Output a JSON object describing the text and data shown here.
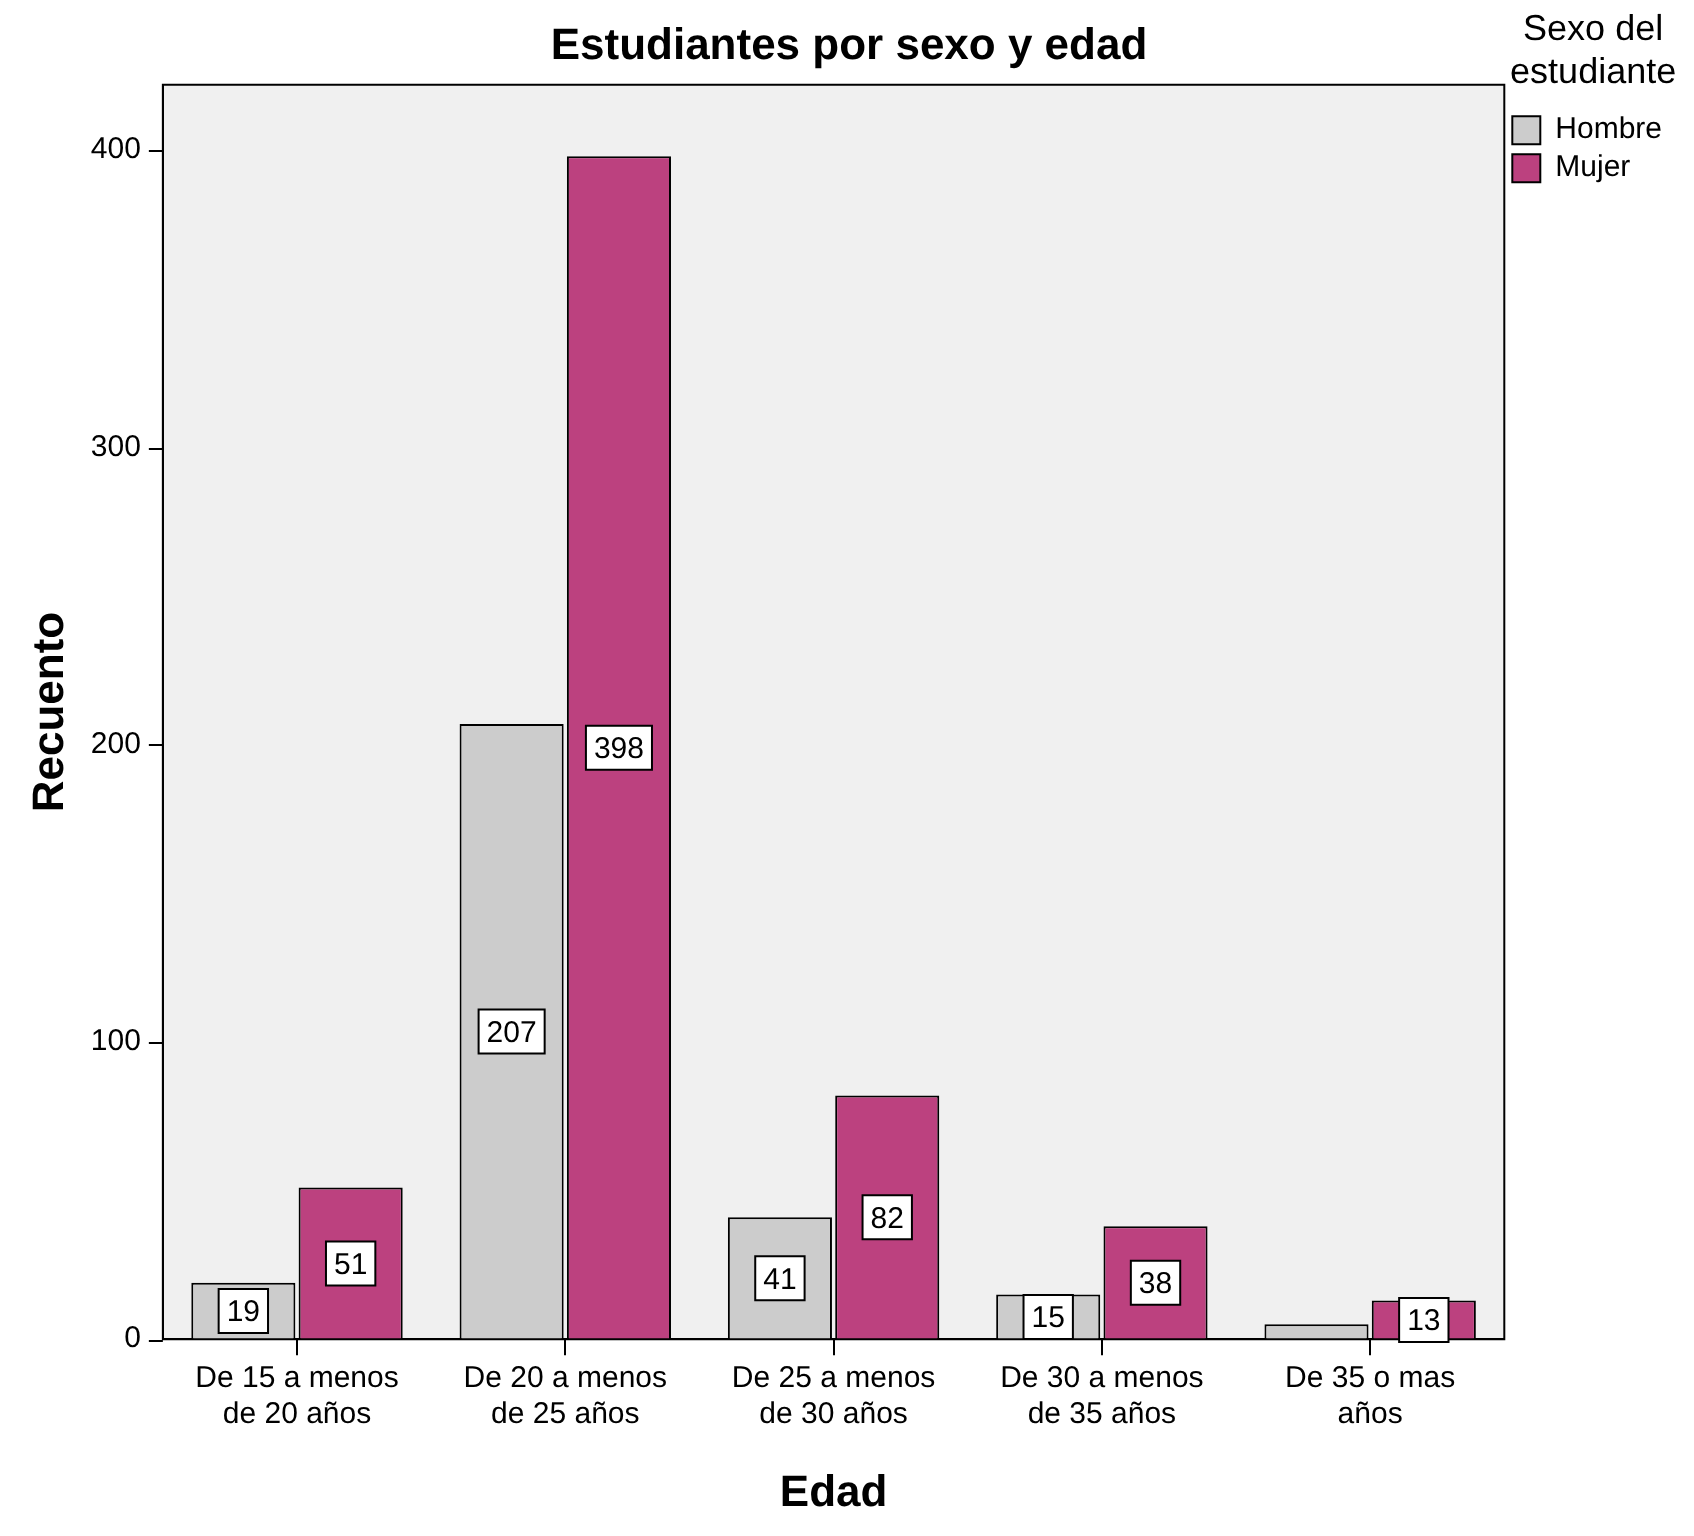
{
  "chart_data": {
    "type": "bar",
    "title": "Estudiantes por sexo y edad",
    "xlabel": "Edad",
    "ylabel": "Recuento",
    "legend_title": "Sexo del\nestudiante",
    "categories": [
      "De 15 a menos\nde 20 años",
      "De 20 a menos\nde 25 años",
      "De 25 a menos\nde 30 años",
      "De 30 a menos\nde 35 años",
      "De 35 o mas\naños"
    ],
    "series": [
      {
        "name": "Hombre",
        "color": "#cccccc",
        "values": [
          19,
          207,
          41,
          15,
          5
        ],
        "value_labels": [
          "19",
          "207",
          "41",
          "15",
          null
        ]
      },
      {
        "name": "Mujer",
        "color": "#bc417f",
        "values": [
          51,
          398,
          82,
          38,
          13
        ],
        "value_labels": [
          "51",
          "398",
          "82",
          "38",
          "13"
        ]
      }
    ],
    "ylim": [
      0,
      422
    ],
    "yticks": [
      0,
      100,
      200,
      300,
      400
    ],
    "grid": false,
    "legend": "right"
  }
}
